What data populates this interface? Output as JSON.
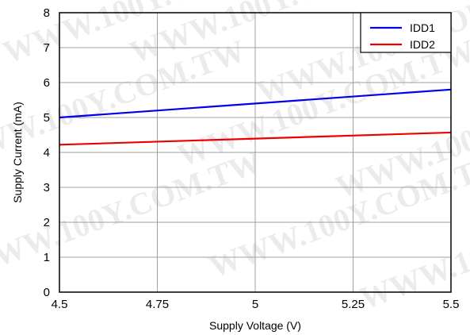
{
  "watermark": "WWW.100Y.COM.TW",
  "chart_data": {
    "type": "line",
    "title": "",
    "xlabel": "Supply Voltage (V)",
    "ylabel": "Supply Current (mA)",
    "xlim": [
      4.5,
      5.5
    ],
    "ylim": [
      0,
      8
    ],
    "x_ticks": [
      4.5,
      4.75,
      5,
      5.25,
      5.5
    ],
    "x_tick_labels": [
      "4.5",
      "4.75",
      "5",
      "5.25",
      "5.5"
    ],
    "y_ticks": [
      0,
      1,
      2,
      3,
      4,
      5,
      6,
      7,
      8
    ],
    "y_tick_labels": [
      "0",
      "1",
      "2",
      "3",
      "4",
      "5",
      "6",
      "7",
      "8"
    ],
    "grid": true,
    "legend_position": "top-right",
    "series": [
      {
        "name": "IDD1",
        "color": "#0000ee",
        "x": [
          4.5,
          5.5
        ],
        "y": [
          5.0,
          5.8
        ]
      },
      {
        "name": "IDD2",
        "color": "#ee0000",
        "x": [
          4.5,
          5.5
        ],
        "y": [
          4.22,
          4.57
        ]
      }
    ]
  }
}
